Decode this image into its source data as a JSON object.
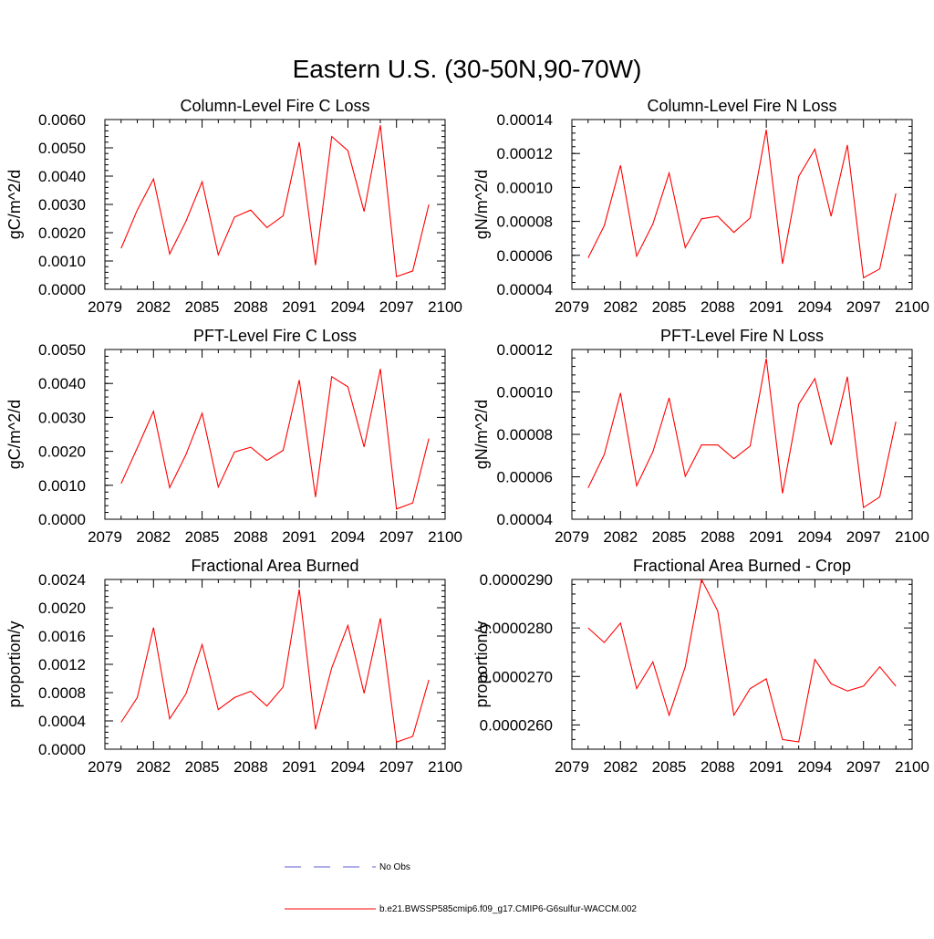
{
  "figure": {
    "title": "Eastern U.S. (30-50N,90-70W)"
  },
  "legend": {
    "placement": "bottom-center",
    "entries": [
      {
        "label": "No Obs",
        "color": "#5b5bd6",
        "dash": "dashed"
      },
      {
        "label": "b.e21.BWSSP585cmip6.f09_g17.CMIP6-G6sulfur-WACCM.002",
        "color": "#ff0000",
        "dash": "solid"
      }
    ]
  },
  "chart_data": [
    {
      "type": "line",
      "title": "Column-Level Fire C Loss",
      "xlabel": "",
      "ylabel": "gC/m^2/d",
      "xlim": [
        2079,
        2100
      ],
      "ylim": [
        0.0,
        0.006
      ],
      "xticks": [
        "2079",
        "2082",
        "2085",
        "2088",
        "2091",
        "2094",
        "2097",
        "2100"
      ],
      "yticks": [
        "0.0000",
        "0.0010",
        "0.0020",
        "0.0030",
        "0.0040",
        "0.0050",
        "0.0060"
      ],
      "x": [
        2080,
        2081,
        2082,
        2083,
        2084,
        2085,
        2086,
        2087,
        2088,
        2089,
        2090,
        2091,
        2092,
        2093,
        2094,
        2095,
        2096,
        2097,
        2098,
        2099
      ],
      "series": [
        {
          "color": "#ff0000",
          "values": [
            0.00145,
            0.0028,
            0.0039,
            0.00125,
            0.0024,
            0.0038,
            0.00122,
            0.00255,
            0.0028,
            0.00218,
            0.0026,
            0.0052,
            0.00085,
            0.0054,
            0.0049,
            0.00275,
            0.0058,
            0.00045,
            0.00065,
            0.003
          ]
        }
      ]
    },
    {
      "type": "line",
      "title": "Column-Level Fire N Loss",
      "xlabel": "",
      "ylabel": "gN/m^2/d",
      "xlim": [
        2079,
        2100
      ],
      "ylim": [
        4e-05,
        0.00014
      ],
      "xticks": [
        "2079",
        "2082",
        "2085",
        "2088",
        "2091",
        "2094",
        "2097",
        "2100"
      ],
      "yticks": [
        "0.00004",
        "0.00006",
        "0.00008",
        "0.00010",
        "0.00012",
        "0.00014"
      ],
      "x": [
        2080,
        2081,
        2082,
        2083,
        2084,
        2085,
        2086,
        2087,
        2088,
        2089,
        2090,
        2091,
        2092,
        2093,
        2094,
        2095,
        2096,
        2097,
        2098,
        2099
      ],
      "series": [
        {
          "color": "#ff0000",
          "values": [
            5.85e-05,
            7.75e-05,
            0.000113,
            5.95e-05,
            7.85e-05,
            0.0001085,
            6.45e-05,
            8.15e-05,
            8.3e-05,
            7.35e-05,
            8.2e-05,
            0.000134,
            5.5e-05,
            0.0001065,
            0.0001225,
            8.3e-05,
            0.000125,
            4.68e-05,
            5.2e-05,
            9.65e-05
          ]
        }
      ]
    },
    {
      "type": "line",
      "title": "PFT-Level Fire C Loss",
      "xlabel": "",
      "ylabel": "gC/m^2/d",
      "xlim": [
        2079,
        2100
      ],
      "ylim": [
        0.0,
        0.005
      ],
      "xticks": [
        "2079",
        "2082",
        "2085",
        "2088",
        "2091",
        "2094",
        "2097",
        "2100"
      ],
      "yticks": [
        "0.0000",
        "0.0010",
        "0.0020",
        "0.0030",
        "0.0040",
        "0.0050"
      ],
      "x": [
        2080,
        2081,
        2082,
        2083,
        2084,
        2085,
        2086,
        2087,
        2088,
        2089,
        2090,
        2091,
        2092,
        2093,
        2094,
        2095,
        2096,
        2097,
        2098,
        2099
      ],
      "series": [
        {
          "color": "#ff0000",
          "values": [
            0.00105,
            0.0021,
            0.00318,
            0.00093,
            0.0019,
            0.00312,
            0.00095,
            0.00198,
            0.00212,
            0.00173,
            0.00203,
            0.0041,
            0.00065,
            0.0042,
            0.0039,
            0.00213,
            0.00443,
            0.0003,
            0.00048,
            0.00238
          ]
        }
      ]
    },
    {
      "type": "line",
      "title": "PFT-Level Fire N Loss",
      "xlabel": "",
      "ylabel": "gN/m^2/d",
      "xlim": [
        2079,
        2100
      ],
      "ylim": [
        4e-05,
        0.00012
      ],
      "xticks": [
        "2079",
        "2082",
        "2085",
        "2088",
        "2091",
        "2094",
        "2097",
        "2100"
      ],
      "yticks": [
        "0.00004",
        "0.00006",
        "0.00008",
        "0.00010",
        "0.00012"
      ],
      "x": [
        2080,
        2081,
        2082,
        2083,
        2084,
        2085,
        2086,
        2087,
        2088,
        2089,
        2090,
        2091,
        2092,
        2093,
        2094,
        2095,
        2096,
        2097,
        2098,
        2099
      ],
      "series": [
        {
          "color": "#ff0000",
          "values": [
            5.48e-05,
            7.05e-05,
            9.95e-05,
            5.58e-05,
            7.18e-05,
            9.72e-05,
            6.02e-05,
            7.5e-05,
            7.5e-05,
            6.85e-05,
            7.45e-05,
            0.0001158,
            5.22e-05,
            9.42e-05,
            0.0001063,
            7.5e-05,
            0.0001072,
            4.55e-05,
            5.05e-05,
            8.6e-05
          ]
        }
      ]
    },
    {
      "type": "line",
      "title": "Fractional Area Burned",
      "xlabel": "",
      "ylabel": "proportion/y",
      "xlim": [
        2079,
        2100
      ],
      "ylim": [
        0.0,
        0.0024
      ],
      "xticks": [
        "2079",
        "2082",
        "2085",
        "2088",
        "2091",
        "2094",
        "2097",
        "2100"
      ],
      "yticks": [
        "0.0000",
        "0.0004",
        "0.0008",
        "0.0012",
        "0.0016",
        "0.0020",
        "0.0024"
      ],
      "x": [
        2080,
        2081,
        2082,
        2083,
        2084,
        2085,
        2086,
        2087,
        2088,
        2089,
        2090,
        2091,
        2092,
        2093,
        2094,
        2095,
        2096,
        2097,
        2098,
        2099
      ],
      "series": [
        {
          "color": "#ff0000",
          "values": [
            0.00038,
            0.00073,
            0.00172,
            0.00043,
            0.00078,
            0.00148,
            0.00056,
            0.00073,
            0.00082,
            0.00061,
            0.00088,
            0.00226,
            0.00028,
            0.00115,
            0.00175,
            0.00079,
            0.00185,
            0.0001,
            0.00018,
            0.00098
          ]
        }
      ]
    },
    {
      "type": "line",
      "title": "Fractional Area Burned - Crop",
      "xlabel": "",
      "ylabel": "proportion/y",
      "xlim": [
        2079,
        2100
      ],
      "ylim": [
        2.55e-05,
        2.9e-05
      ],
      "xticks": [
        "2079",
        "2082",
        "2085",
        "2088",
        "2091",
        "2094",
        "2097",
        "2100"
      ],
      "yticks": [
        "0.0000260",
        "0.0000270",
        "0.0000280",
        "0.0000290"
      ],
      "ytick_values": [
        2.6e-05,
        2.7e-05,
        2.8e-05,
        2.9e-05
      ],
      "x": [
        2080,
        2081,
        2082,
        2083,
        2084,
        2085,
        2086,
        2087,
        2088,
        2089,
        2090,
        2091,
        2092,
        2093,
        2094,
        2095,
        2096,
        2097,
        2098,
        2099
      ],
      "series": [
        {
          "color": "#ff0000",
          "values": [
            2.8e-05,
            2.77e-05,
            2.81e-05,
            2.675e-05,
            2.73e-05,
            2.62e-05,
            2.72e-05,
            2.9e-05,
            2.835e-05,
            2.62e-05,
            2.675e-05,
            2.695e-05,
            2.57e-05,
            2.565e-05,
            2.735e-05,
            2.685e-05,
            2.67e-05,
            2.68e-05,
            2.72e-05,
            2.68e-05
          ]
        }
      ]
    }
  ]
}
